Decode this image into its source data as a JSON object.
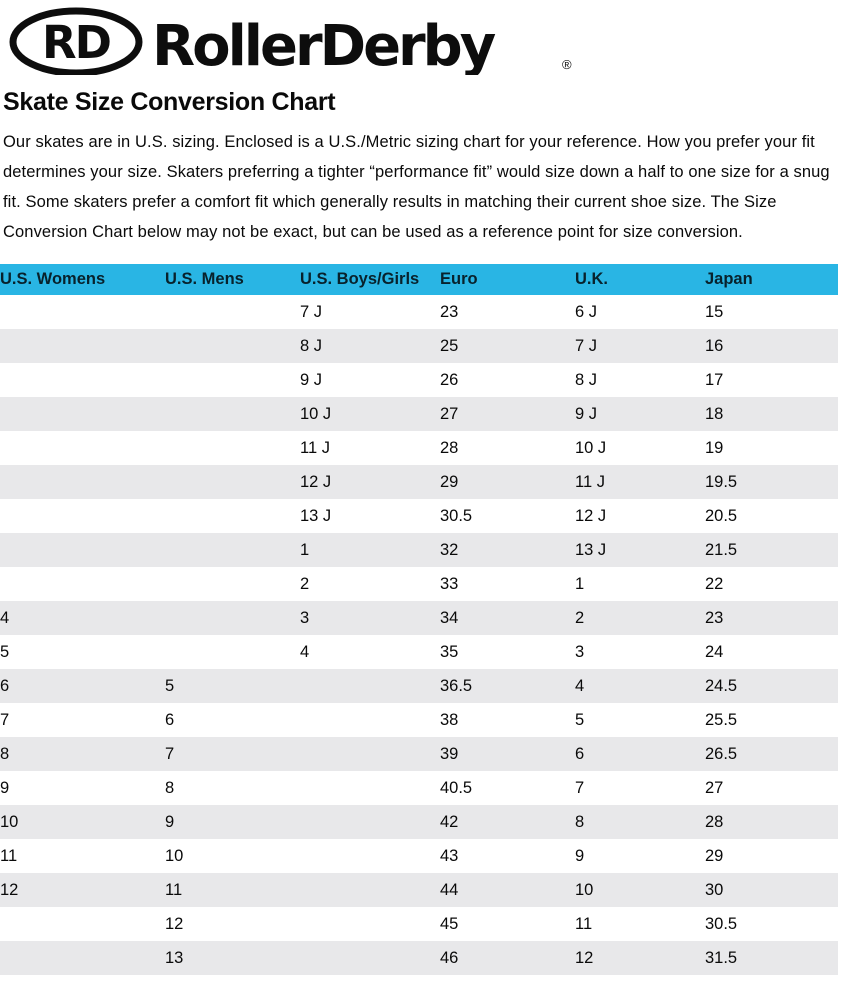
{
  "logo": {
    "monogram": "RD",
    "brand": "RollerDerby",
    "registered": "®"
  },
  "page": {
    "title": "Skate Size Conversion Chart",
    "description": "Our skates are in U.S. sizing. Enclosed is a U.S./Metric sizing chart for your reference. How you prefer your fit determines your size. Skaters preferring a tighter “performance fit” would size down a half to one size for a snug fit. Some skaters prefer a comfort fit which generally results in matching their current shoe size. The Size Conversion Chart below may not be exact, but can be used as a reference point for size conversion."
  },
  "size_chart": {
    "columns": [
      "U.S. Womens",
      "U.S. Mens",
      "U.S. Boys/Girls",
      "Euro",
      "U.K.",
      "Japan"
    ],
    "rows": [
      [
        "",
        "",
        "7 J",
        "23",
        "6 J",
        "15"
      ],
      [
        "",
        "",
        "8 J",
        "25",
        "7 J",
        "16"
      ],
      [
        "",
        "",
        "9 J",
        "26",
        "8 J",
        "17"
      ],
      [
        "",
        "",
        "10 J",
        "27",
        "9 J",
        "18"
      ],
      [
        "",
        "",
        "11 J",
        "28",
        "10 J",
        "19"
      ],
      [
        "",
        "",
        "12 J",
        "29",
        "11 J",
        "19.5"
      ],
      [
        "",
        "",
        "13 J",
        "30.5",
        "12 J",
        "20.5"
      ],
      [
        "",
        "",
        "1",
        "32",
        "13 J",
        "21.5"
      ],
      [
        "",
        "",
        "2",
        "33",
        "1",
        "22"
      ],
      [
        "4",
        "",
        "3",
        "34",
        "2",
        "23"
      ],
      [
        "5",
        "",
        "4",
        "35",
        "3",
        "24"
      ],
      [
        "6",
        "5",
        "",
        "36.5",
        "4",
        "24.5"
      ],
      [
        "7",
        "6",
        "",
        "38",
        "5",
        "25.5"
      ],
      [
        "8",
        "7",
        "",
        "39",
        "6",
        "26.5"
      ],
      [
        "9",
        "8",
        "",
        "40.5",
        "7",
        "27"
      ],
      [
        "10",
        "9",
        "",
        "42",
        "8",
        "28"
      ],
      [
        "11",
        "10",
        "",
        "43",
        "9",
        "29"
      ],
      [
        "12",
        "11",
        "",
        "44",
        "10",
        "30"
      ],
      [
        "",
        "12",
        "",
        "45",
        "11",
        "30.5"
      ],
      [
        "",
        "13",
        "",
        "46",
        "12",
        "31.5"
      ]
    ]
  },
  "colors": {
    "header_bg": "#29b5e4",
    "row_alt_bg": "#e8e8ea",
    "logo_ink": "#0d0d0d"
  }
}
